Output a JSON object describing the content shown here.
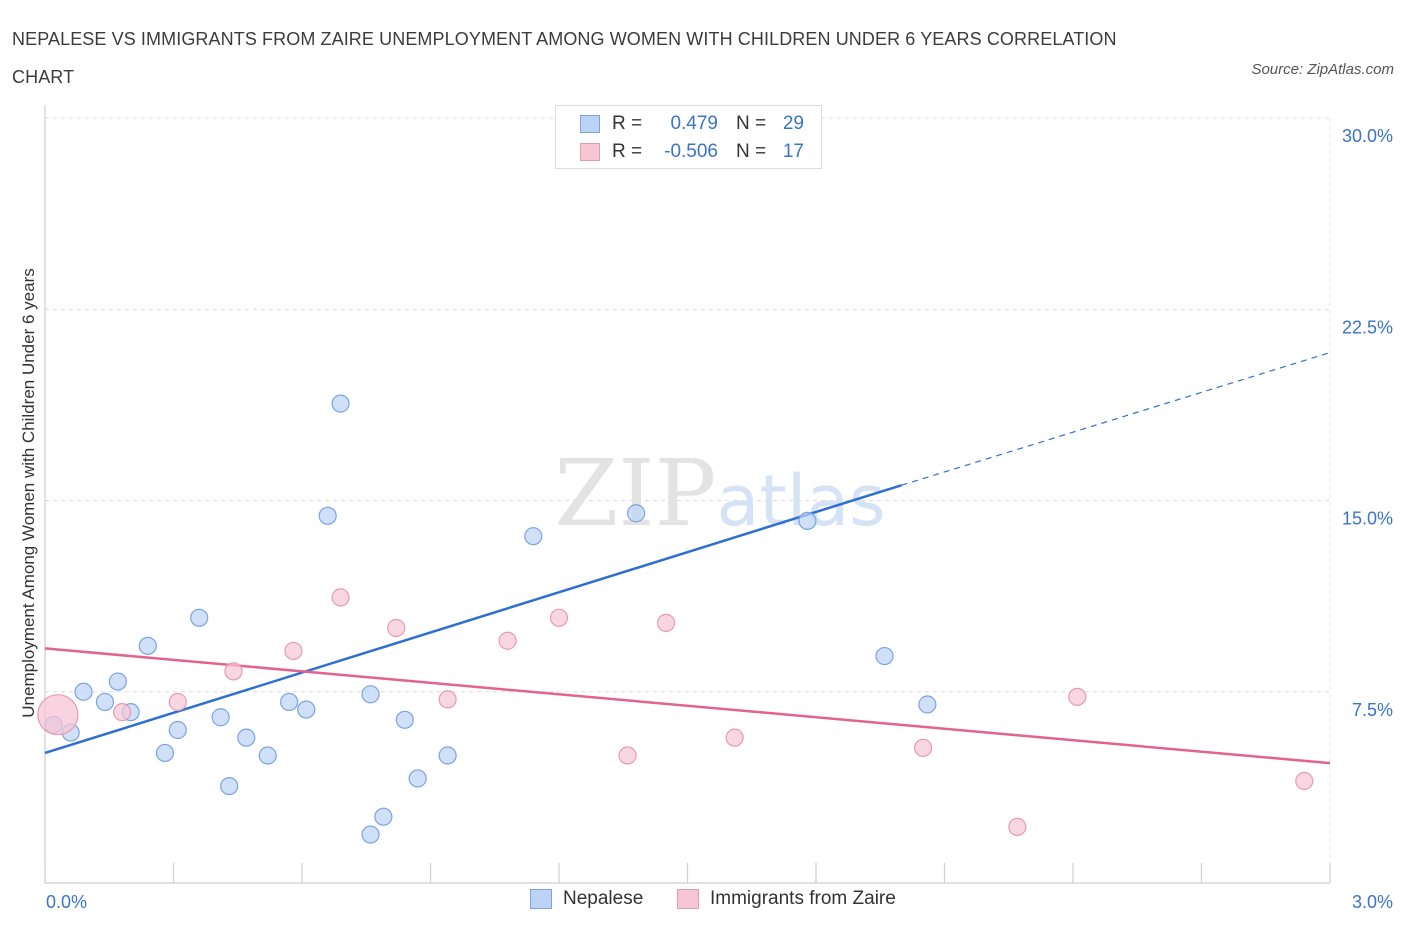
{
  "title": "NEPALESE VS IMMIGRANTS FROM ZAIRE UNEMPLOYMENT AMONG WOMEN WITH CHILDREN UNDER 6 YEARS CORRELATION CHART",
  "source": "Source: ZipAtlas.com",
  "watermark": "ZIPatlas",
  "colors": {
    "nepalese_fill": "#bcd3f5",
    "nepalese_stroke": "#7aa4e0",
    "nepalese_line": "#2f6fd0",
    "zaire_fill": "#f7c6d5",
    "zaire_stroke": "#e89ab3",
    "zaire_line": "#e0648e",
    "tick_text": "#3a74c8"
  },
  "stats": {
    "rows": [
      {
        "r_label": "R =",
        "r_value": "0.479",
        "n_label": "N =",
        "n_value": "29"
      },
      {
        "r_label": "R =",
        "r_value": "-0.506",
        "n_label": "N =",
        "n_value": "17"
      }
    ]
  },
  "legend": {
    "nepalese": "Nepalese",
    "zaire": "Immigrants from Zaire"
  },
  "chart_data": {
    "type": "scatter",
    "title": "NEPALESE VS IMMIGRANTS FROM ZAIRE UNEMPLOYMENT AMONG WOMEN WITH CHILDREN UNDER 6 YEARS CORRELATION CHART",
    "xlabel": "",
    "ylabel": "Unemployment Among Women with Children Under 6 years",
    "xlim": [
      0,
      3.0
    ],
    "ylim": [
      0,
      30.0
    ],
    "x_tick_labels": [
      "0.0%",
      "3.0%"
    ],
    "y_ticks": [
      7.5,
      15.0,
      22.5,
      30.0
    ],
    "y_tick_labels": [
      "7.5%",
      "15.0%",
      "22.5%",
      "30.0%"
    ],
    "grid": true,
    "legend_position": "bottom-center",
    "series": [
      {
        "name": "Nepalese",
        "points": [
          [
            0.02,
            6.2
          ],
          [
            0.06,
            5.9
          ],
          [
            0.09,
            7.5
          ],
          [
            0.14,
            7.1
          ],
          [
            0.17,
            7.9
          ],
          [
            0.2,
            6.7
          ],
          [
            0.24,
            9.3
          ],
          [
            0.28,
            5.1
          ],
          [
            0.31,
            6.0
          ],
          [
            0.36,
            10.4
          ],
          [
            0.41,
            6.5
          ],
          [
            0.43,
            3.8
          ],
          [
            0.47,
            5.7
          ],
          [
            0.52,
            5.0
          ],
          [
            0.57,
            7.1
          ],
          [
            0.61,
            6.8
          ],
          [
            0.66,
            14.4
          ],
          [
            0.69,
            18.8
          ],
          [
            0.76,
            1.9
          ],
          [
            0.79,
            2.6
          ],
          [
            0.76,
            7.4
          ],
          [
            0.84,
            6.4
          ],
          [
            0.87,
            4.1
          ],
          [
            0.94,
            5.0
          ],
          [
            1.14,
            13.6
          ],
          [
            1.38,
            14.5
          ],
          [
            1.78,
            14.2
          ],
          [
            1.96,
            8.9
          ],
          [
            2.06,
            7.0
          ]
        ],
        "trend": {
          "x": [
            0.0,
            2.0
          ],
          "y": [
            5.1,
            15.6
          ],
          "dashed_to": [
            3.0,
            20.8
          ]
        }
      },
      {
        "name": "Immigrants from Zaire",
        "points": [
          [
            0.03,
            6.6
          ],
          [
            0.18,
            6.7
          ],
          [
            0.31,
            7.1
          ],
          [
            0.44,
            8.3
          ],
          [
            0.58,
            9.1
          ],
          [
            0.69,
            11.2
          ],
          [
            0.82,
            10.0
          ],
          [
            0.94,
            7.2
          ],
          [
            1.08,
            9.5
          ],
          [
            1.2,
            10.4
          ],
          [
            1.36,
            5.0
          ],
          [
            1.45,
            10.2
          ],
          [
            1.61,
            5.7
          ],
          [
            2.05,
            5.3
          ],
          [
            2.27,
            2.2
          ],
          [
            2.41,
            7.3
          ],
          [
            2.94,
            4.0
          ]
        ],
        "trend": {
          "x": [
            0.0,
            3.0
          ],
          "y": [
            9.2,
            4.7
          ]
        }
      }
    ]
  }
}
